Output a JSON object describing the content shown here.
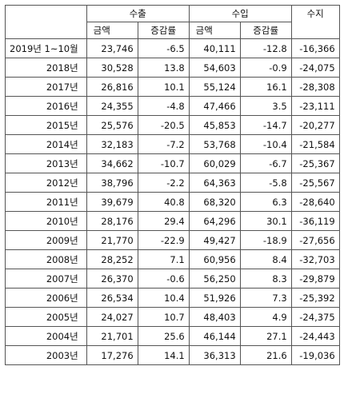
{
  "header": {
    "export": "수출",
    "import": "수입",
    "balance": "수지",
    "amount": "금액",
    "rate": "증감률"
  },
  "rows": [
    {
      "year": "2019년 1~10월",
      "exp_amt": "23,746",
      "exp_rate": "-6.5",
      "imp_amt": "40,111",
      "imp_rate": "-12.8",
      "balance": "-16,366"
    },
    {
      "year": "2018년",
      "exp_amt": "30,528",
      "exp_rate": "13.8",
      "imp_amt": "54,603",
      "imp_rate": "-0.9",
      "balance": "-24,075"
    },
    {
      "year": "2017년",
      "exp_amt": "26,816",
      "exp_rate": "10.1",
      "imp_amt": "55,124",
      "imp_rate": "16.1",
      "balance": "-28,308"
    },
    {
      "year": "2016년",
      "exp_amt": "24,355",
      "exp_rate": "-4.8",
      "imp_amt": "47,466",
      "imp_rate": "3.5",
      "balance": "-23,111"
    },
    {
      "year": "2015년",
      "exp_amt": "25,576",
      "exp_rate": "-20.5",
      "imp_amt": "45,853",
      "imp_rate": "-14.7",
      "balance": "-20,277"
    },
    {
      "year": "2014년",
      "exp_amt": "32,183",
      "exp_rate": "-7.2",
      "imp_amt": "53,768",
      "imp_rate": "-10.4",
      "balance": "-21,584"
    },
    {
      "year": "2013년",
      "exp_amt": "34,662",
      "exp_rate": "-10.7",
      "imp_amt": "60,029",
      "imp_rate": "-6.7",
      "balance": "-25,367"
    },
    {
      "year": "2012년",
      "exp_amt": "38,796",
      "exp_rate": "-2.2",
      "imp_amt": "64,363",
      "imp_rate": "-5.8",
      "balance": "-25,567"
    },
    {
      "year": "2011년",
      "exp_amt": "39,679",
      "exp_rate": "40.8",
      "imp_amt": "68,320",
      "imp_rate": "6.3",
      "balance": "-28,640"
    },
    {
      "year": "2010년",
      "exp_amt": "28,176",
      "exp_rate": "29.4",
      "imp_amt": "64,296",
      "imp_rate": "30.1",
      "balance": "-36,119"
    },
    {
      "year": "2009년",
      "exp_amt": "21,770",
      "exp_rate": "-22.9",
      "imp_amt": "49,427",
      "imp_rate": "-18.9",
      "balance": "-27,656"
    },
    {
      "year": "2008년",
      "exp_amt": "28,252",
      "exp_rate": "7.1",
      "imp_amt": "60,956",
      "imp_rate": "8.4",
      "balance": "-32,703"
    },
    {
      "year": "2007년",
      "exp_amt": "26,370",
      "exp_rate": "-0.6",
      "imp_amt": "56,250",
      "imp_rate": "8.3",
      "balance": "-29,879"
    },
    {
      "year": "2006년",
      "exp_amt": "26,534",
      "exp_rate": "10.4",
      "imp_amt": "51,926",
      "imp_rate": "7.3",
      "balance": "-25,392"
    },
    {
      "year": "2005년",
      "exp_amt": "24,027",
      "exp_rate": "10.7",
      "imp_amt": "48,403",
      "imp_rate": "4.9",
      "balance": "-24,375"
    },
    {
      "year": "2004년",
      "exp_amt": "21,701",
      "exp_rate": "25.6",
      "imp_amt": "46,144",
      "imp_rate": "27.1",
      "balance": "-24,443"
    },
    {
      "year": "2003년",
      "exp_amt": "17,276",
      "exp_rate": "14.1",
      "imp_amt": "36,313",
      "imp_rate": "21.6",
      "balance": "-19,036"
    }
  ]
}
